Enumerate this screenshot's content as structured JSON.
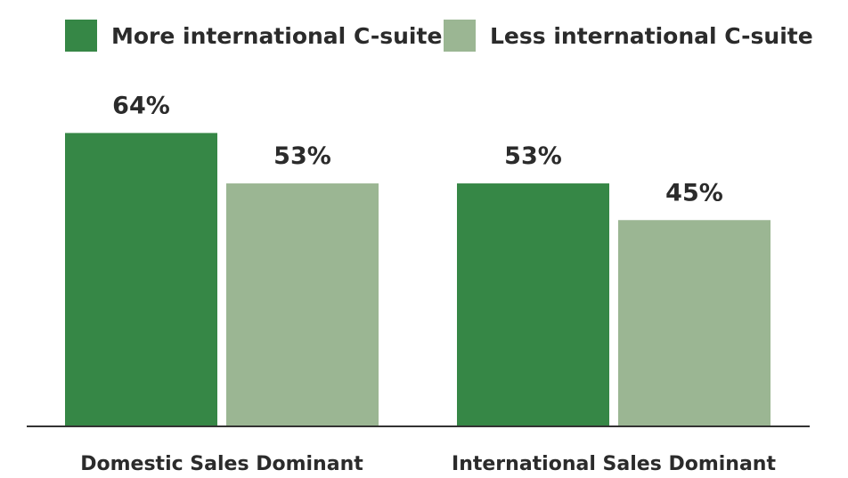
{
  "chart_data": {
    "type": "bar",
    "categories": [
      "Domestic Sales Dominant",
      "International Sales Dominant"
    ],
    "series": [
      {
        "name": "More international C-suite",
        "values": [
          64,
          53
        ],
        "labels": [
          "64%",
          "53%"
        ],
        "color": "#368746"
      },
      {
        "name": "Less international C-suite",
        "values": [
          53,
          45
        ],
        "labels": [
          "53%",
          "45%"
        ],
        "color": "#9bb693"
      }
    ],
    "ylim": [
      0,
      100
    ],
    "legend_position": "top-left",
    "grid": false,
    "baseline_color": "#333333",
    "text_color": "#2b2b2b"
  }
}
